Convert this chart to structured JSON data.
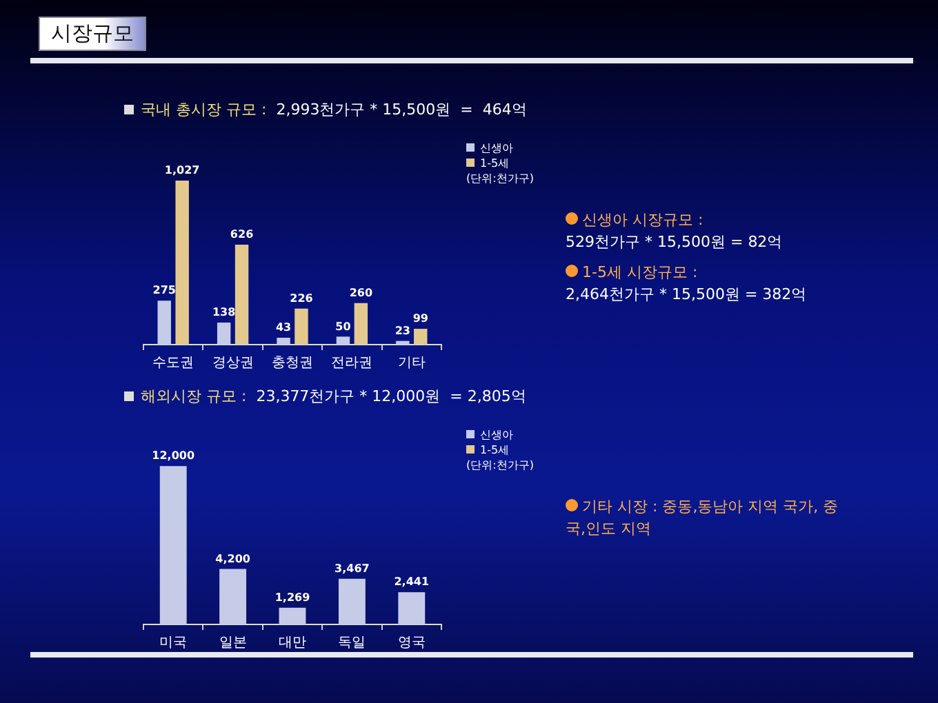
{
  "chart_data": [
    {
      "type": "other",
      "title": "시장규모"
    },
    {
      "type": "bar",
      "title": "국내 총시장 규모 :  2,993천가구 * 15,500원  =  464억",
      "categories": [
        "수도권",
        "경상권",
        "충청권",
        "전라권",
        "기타"
      ],
      "series": [
        {
          "name": "신생아",
          "color": "#c6cbe8",
          "values": [
            275,
            138,
            43,
            50,
            23
          ],
          "value_labels": [
            "275",
            "138",
            "43",
            "50",
            "23"
          ]
        },
        {
          "name": "1-5세",
          "color": "#e4c98e",
          "values": [
            1027,
            626,
            226,
            260,
            99
          ],
          "value_labels": [
            "1,027",
            "626",
            "226",
            "260",
            "99"
          ]
        }
      ],
      "legend": "top right",
      "tick_labels": "x",
      "grid": false,
      "annotations": [
        "(단위:천가구)",
        "신생아 시장규모  :\n529천가구 * 15,500원 =  82억",
        "1-5세  시장규모  :\n2,464천가구 * 15,500원 = 382억"
      ]
    },
    {
      "type": "bar",
      "title": "해외시장 규모 :  23,377천가구 * 12,000원  = 2,805억",
      "categories": [
        "미국",
        "일본",
        "대만",
        "독일",
        "영국"
      ],
      "series": [
        {
          "name": "신생아",
          "color": "#c6cbe8",
          "values": [
            12000,
            4200,
            1269,
            3467,
            2441
          ],
          "value_labels": [
            "12,000",
            "4,200",
            "1,269",
            "3,467",
            "2,441"
          ]
        },
        {
          "name": "1-5세",
          "color": "#e4c98e",
          "values": [
            null,
            null,
            null,
            null,
            null
          ]
        }
      ],
      "legend": "top right",
      "tick_labels": "x",
      "grid": false,
      "annotations": [
        "(단위:천가구)",
        "기타 시장 : 중동,동남아 지역 국가, 중국,인도 지역"
      ]
    }
  ]
}
